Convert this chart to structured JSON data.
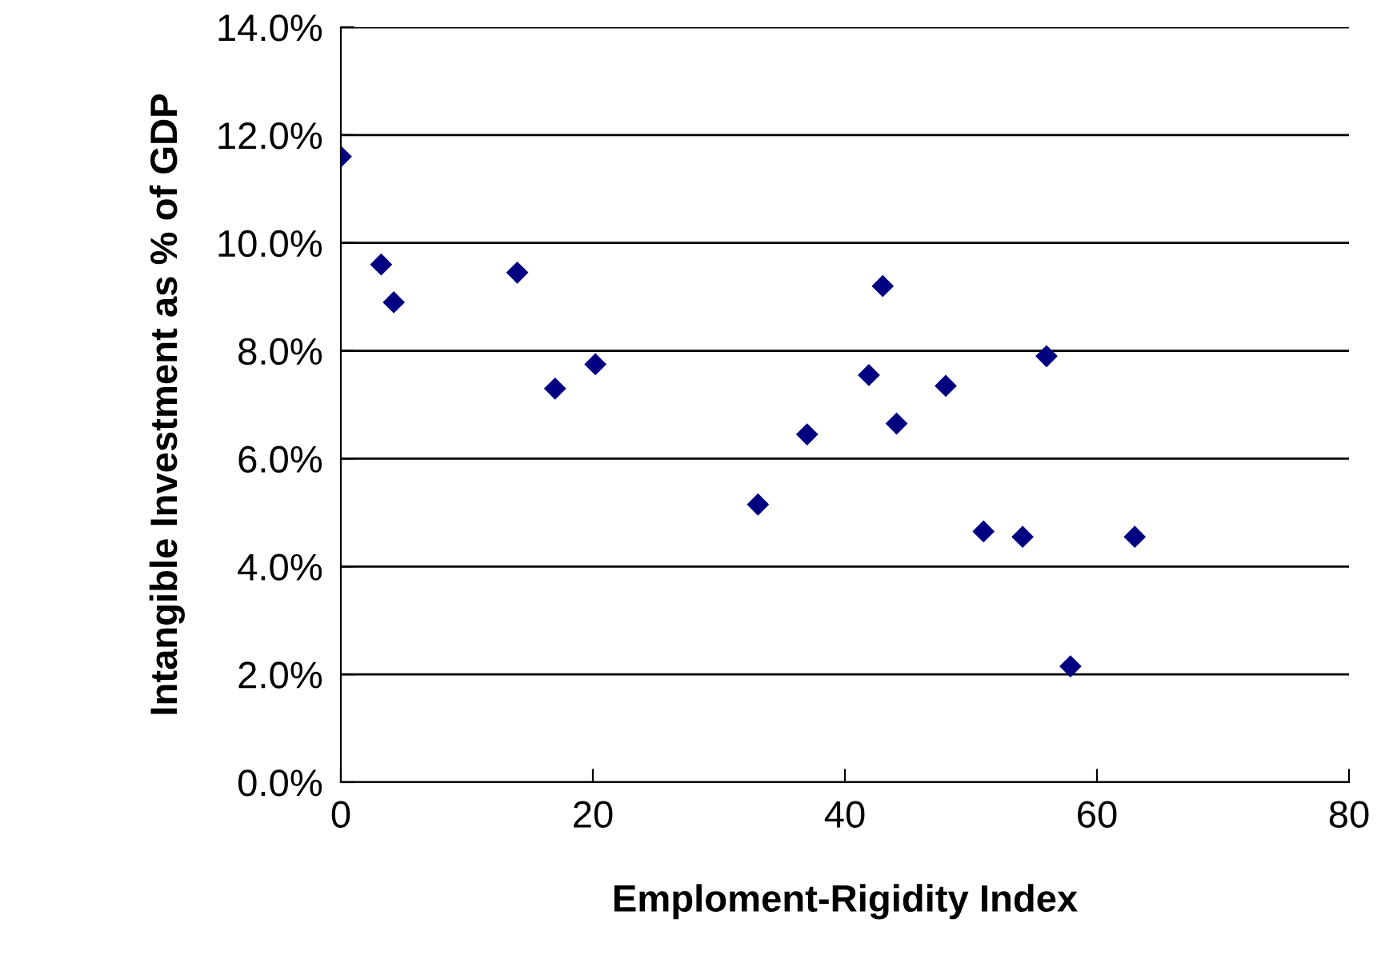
{
  "chart_data": {
    "type": "scatter",
    "xlabel": "Emploment-Rigidity Index",
    "ylabel": "Intangible Investment as % of GDP",
    "x": [
      0,
      3.2,
      4.2,
      14,
      17,
      20.2,
      33.1,
      37,
      41.9,
      43,
      44.1,
      48,
      51,
      54.1,
      56,
      57.9,
      63
    ],
    "series": [
      {
        "color": "#000080",
        "values": [
          11.6,
          9.6,
          8.9,
          9.45,
          7.3,
          7.75,
          5.15,
          6.45,
          7.55,
          9.2,
          6.65,
          7.35,
          4.65,
          4.55,
          7.9,
          2.15,
          4.55
        ]
      }
    ],
    "marker": "diamond",
    "grid": "y",
    "xlim": [
      0,
      80
    ],
    "xticks": [
      0,
      20,
      40,
      60,
      80
    ],
    "ylim": [
      0,
      14
    ],
    "yticks": [
      {
        "value": 0,
        "label": "0.0%"
      },
      {
        "value": 2,
        "label": "2.0%"
      },
      {
        "value": 4,
        "label": "4.0%"
      },
      {
        "value": 6,
        "label": "6.0%"
      },
      {
        "value": 8,
        "label": "8.0%"
      },
      {
        "value": 10,
        "label": "10.0%"
      },
      {
        "value": 12,
        "label": "12.0%"
      },
      {
        "value": 14,
        "label": "14.0%"
      }
    ]
  }
}
